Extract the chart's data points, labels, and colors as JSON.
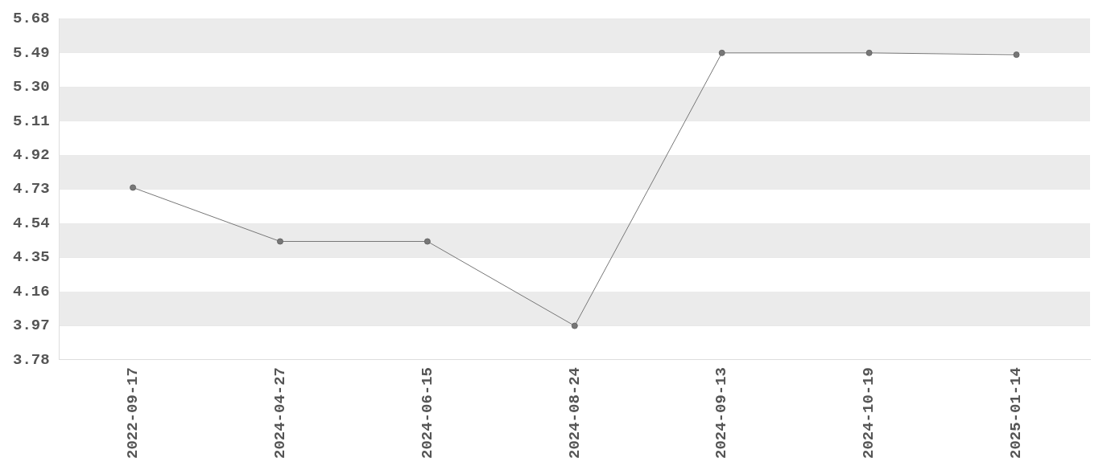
{
  "chart_data": {
    "type": "line",
    "categories": [
      "2022-09-17",
      "2024-04-27",
      "2024-06-15",
      "2024-08-24",
      "2024-09-13",
      "2024-10-19",
      "2025-01-14"
    ],
    "series": [
      {
        "color": "#777777",
        "values": [
          4.74,
          4.44,
          4.44,
          3.97,
          5.49,
          5.49,
          5.48
        ]
      }
    ],
    "ylim": [
      3.78,
      5.68
    ],
    "yticks": [
      3.78,
      3.97,
      4.16,
      4.35,
      4.54,
      4.73,
      4.92,
      5.11,
      {
        "value": 5.3,
        "label": "5.30"
      },
      5.49,
      5.68
    ],
    "grid": true,
    "legend": false,
    "marker": "circle",
    "line_style": "solid"
  }
}
